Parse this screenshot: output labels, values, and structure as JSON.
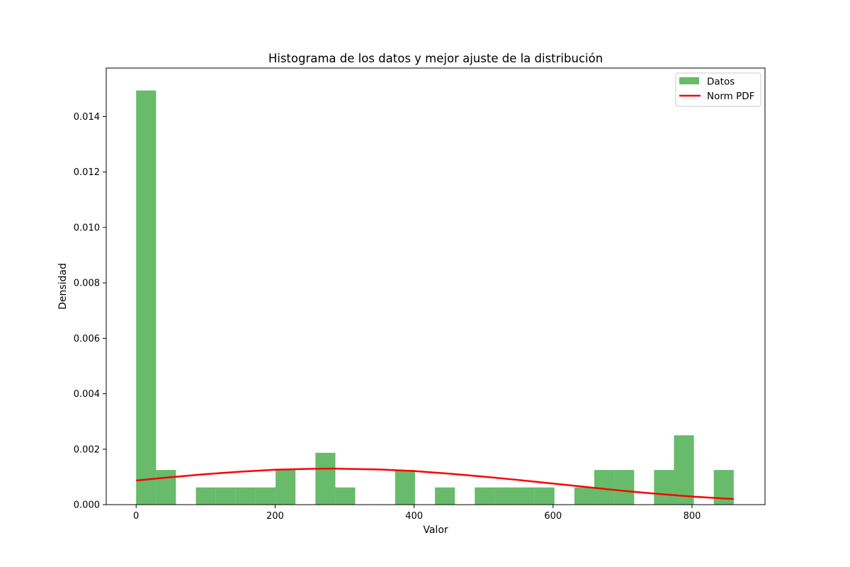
{
  "chart_data": {
    "type": "bar",
    "title": "Histograma de los datos y mejor ajuste de la distribución",
    "xlabel": "Valor",
    "ylabel": "Densidad",
    "xlim": [
      -43,
      905
    ],
    "ylim": [
      0,
      0.01575
    ],
    "x_ticks": [
      0,
      200,
      400,
      600,
      800
    ],
    "x_tick_labels": [
      "0",
      "200",
      "400",
      "600",
      "800"
    ],
    "y_ticks": [
      0,
      0.002,
      0.004,
      0.006,
      0.008,
      0.01,
      0.012,
      0.014
    ],
    "y_tick_labels": [
      "0.000",
      "0.002",
      "0.004",
      "0.006",
      "0.008",
      "0.010",
      "0.012",
      "0.014"
    ],
    "grid": false,
    "legend_position": "top-right",
    "bar_color": "#4caf50",
    "line_color": "#ff0000",
    "series": [
      {
        "name": "Datos",
        "kind": "histogram",
        "bin_edges": [
          0,
          28.7,
          57.3,
          86,
          114.7,
          143.3,
          172,
          200.7,
          229.3,
          258,
          286.7,
          315.3,
          344,
          372.7,
          401.3,
          430,
          458.7,
          487.3,
          516,
          544.7,
          573.3,
          602,
          630.7,
          659.3,
          688,
          716.7,
          745.3,
          774,
          802.7,
          831.3,
          860
        ],
        "values": [
          0.01494,
          0.00125,
          0,
          0.00062,
          0.00062,
          0.00062,
          0.00062,
          0.00125,
          0,
          0.00187,
          0.00062,
          0,
          0,
          0.00125,
          0,
          0.00062,
          0,
          0.00062,
          0.00062,
          0.00062,
          0.00062,
          0,
          0.00062,
          0.00125,
          0.00125,
          0,
          0.00125,
          0.0025,
          0,
          0.00125
        ]
      },
      {
        "name": "Norm PDF",
        "kind": "line",
        "x": [
          0,
          50,
          100,
          150,
          200,
          250,
          285,
          300,
          350,
          400,
          450,
          500,
          550,
          600,
          650,
          700,
          750,
          800,
          860
        ],
        "y": [
          0.00087,
          0.00099,
          0.0011,
          0.00119,
          0.00126,
          0.00129,
          0.0013,
          0.00129,
          0.00127,
          0.00121,
          0.00112,
          0.00101,
          0.00089,
          0.00076,
          0.00063,
          0.0005,
          0.00039,
          0.00029,
          0.0002
        ]
      }
    ]
  }
}
